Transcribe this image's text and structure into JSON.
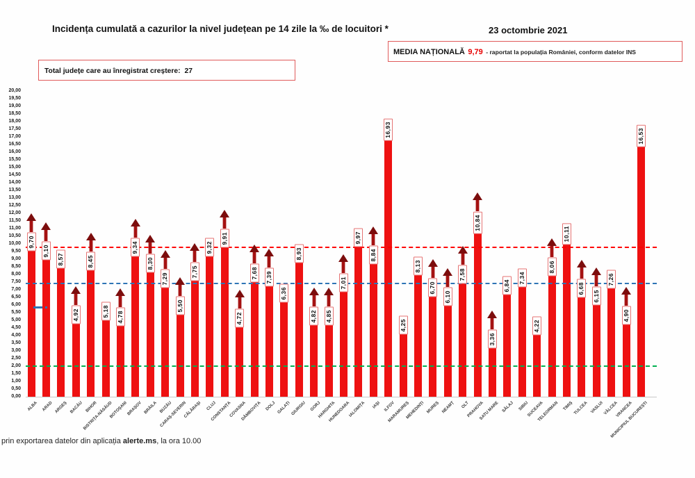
{
  "header": {
    "title": "Incidența cumulată a cazurilor la nivel județean pe 14 zile la ‰ de locuitori *",
    "date": "23 octombrie 2021",
    "national_average": {
      "label": "MEDIA NAȚIONALĂ",
      "value": "9,79",
      "note": "-  raportat la populația României, conform datelor INS"
    },
    "increase_box": {
      "label": "Total județe care au înregistrat creștere:",
      "count": "27"
    }
  },
  "footer": {
    "prefix": "prin exportarea datelor din aplicația ",
    "app_name": "alerte.ms",
    "suffix": ", la ora 10.00"
  },
  "chart_data": {
    "type": "bar",
    "title": "Incidența cumulată a cazurilor la nivel județean pe 14 zile la ‰ de locuitori *",
    "xlabel": "",
    "ylabel": "",
    "ylim": [
      0,
      20
    ],
    "ytick_step": 0.5,
    "grid": false,
    "legend": "none",
    "categories": [
      "ALBA",
      "ARAD",
      "ARGEȘ",
      "BACĂU",
      "BIHOR",
      "BISTRIȚA-NĂSĂUD",
      "BOTOȘANI",
      "BRAȘOV",
      "BRĂILA",
      "BUZĂU",
      "CARAȘ-SEVERIN",
      "CĂLĂRAȘI",
      "CLUJ",
      "CONSTANȚA",
      "COVASNA",
      "DÂMBOVIȚA",
      "DOLJ",
      "GALAȚI",
      "GIURGIU",
      "GORJ",
      "HARGHITA",
      "HUNEDOARA",
      "IALOMIȚA",
      "IAȘI",
      "ILFOV",
      "MARAMUREȘ",
      "MEHEDINȚI",
      "MUREȘ",
      "NEAMȚ",
      "OLT",
      "PRAHOVA",
      "SATU MARE",
      "SĂLAJ",
      "SIBIU",
      "SUCEAVA",
      "TELEORMAN",
      "TIMIȘ",
      "TULCEA",
      "VASLUI",
      "VÂLCEA",
      "VRANCEA",
      "MUNICIPIUL BUCUREȘTI"
    ],
    "values": [
      9.7,
      9.1,
      8.57,
      4.92,
      8.45,
      5.18,
      4.78,
      9.34,
      8.3,
      7.29,
      5.5,
      7.75,
      9.32,
      9.91,
      4.72,
      7.68,
      7.39,
      6.36,
      8.93,
      4.82,
      4.85,
      7.01,
      9.97,
      8.84,
      16.93,
      4.25,
      8.13,
      6.7,
      6.1,
      7.58,
      10.84,
      3.36,
      6.84,
      7.34,
      4.22,
      8.06,
      10.11,
      6.68,
      6.15,
      7.26,
      4.9,
      16.53
    ],
    "increase": [
      true,
      true,
      false,
      true,
      true,
      false,
      true,
      true,
      true,
      true,
      true,
      true,
      false,
      true,
      true,
      true,
      true,
      false,
      false,
      true,
      true,
      true,
      false,
      true,
      false,
      false,
      false,
      true,
      true,
      true,
      true,
      true,
      false,
      false,
      false,
      true,
      false,
      true,
      true,
      false,
      true,
      false
    ],
    "ytick_labels": [
      "20,00",
      "19,50",
      "19,00",
      "18,50",
      "18,00",
      "17,50",
      "17,00",
      "16,50",
      "16,00",
      "15,50",
      "15,00",
      "14,50",
      "14,00",
      "13,50",
      "13,00",
      "12,50",
      "12,00",
      "11,50",
      "11,00",
      "10,50",
      "10,00",
      "9,50",
      "9,00",
      "8,50",
      "8,00",
      "7,50",
      "7,00",
      "6,50",
      "6,00",
      "5,50",
      "5,00",
      "4,50",
      "4,00",
      "3,50",
      "3,00",
      "2,50",
      "2,00",
      "1,50",
      "1,00",
      "0,50",
      "0,00"
    ],
    "reference_lines": [
      {
        "name": "media-nationala",
        "value": 9.79,
        "color": "#ff0000"
      },
      {
        "name": "reference-blue",
        "value": 7.4,
        "color": "#2e74b5"
      },
      {
        "name": "reference-green",
        "value": 2.0,
        "color": "#00b050"
      }
    ],
    "colors": {
      "bar": "#ee1111",
      "arrow_stem": "#a51212",
      "arrow_head": "#7c0d0d",
      "label_border": "#e57373",
      "national_value": "#e80000"
    }
  }
}
